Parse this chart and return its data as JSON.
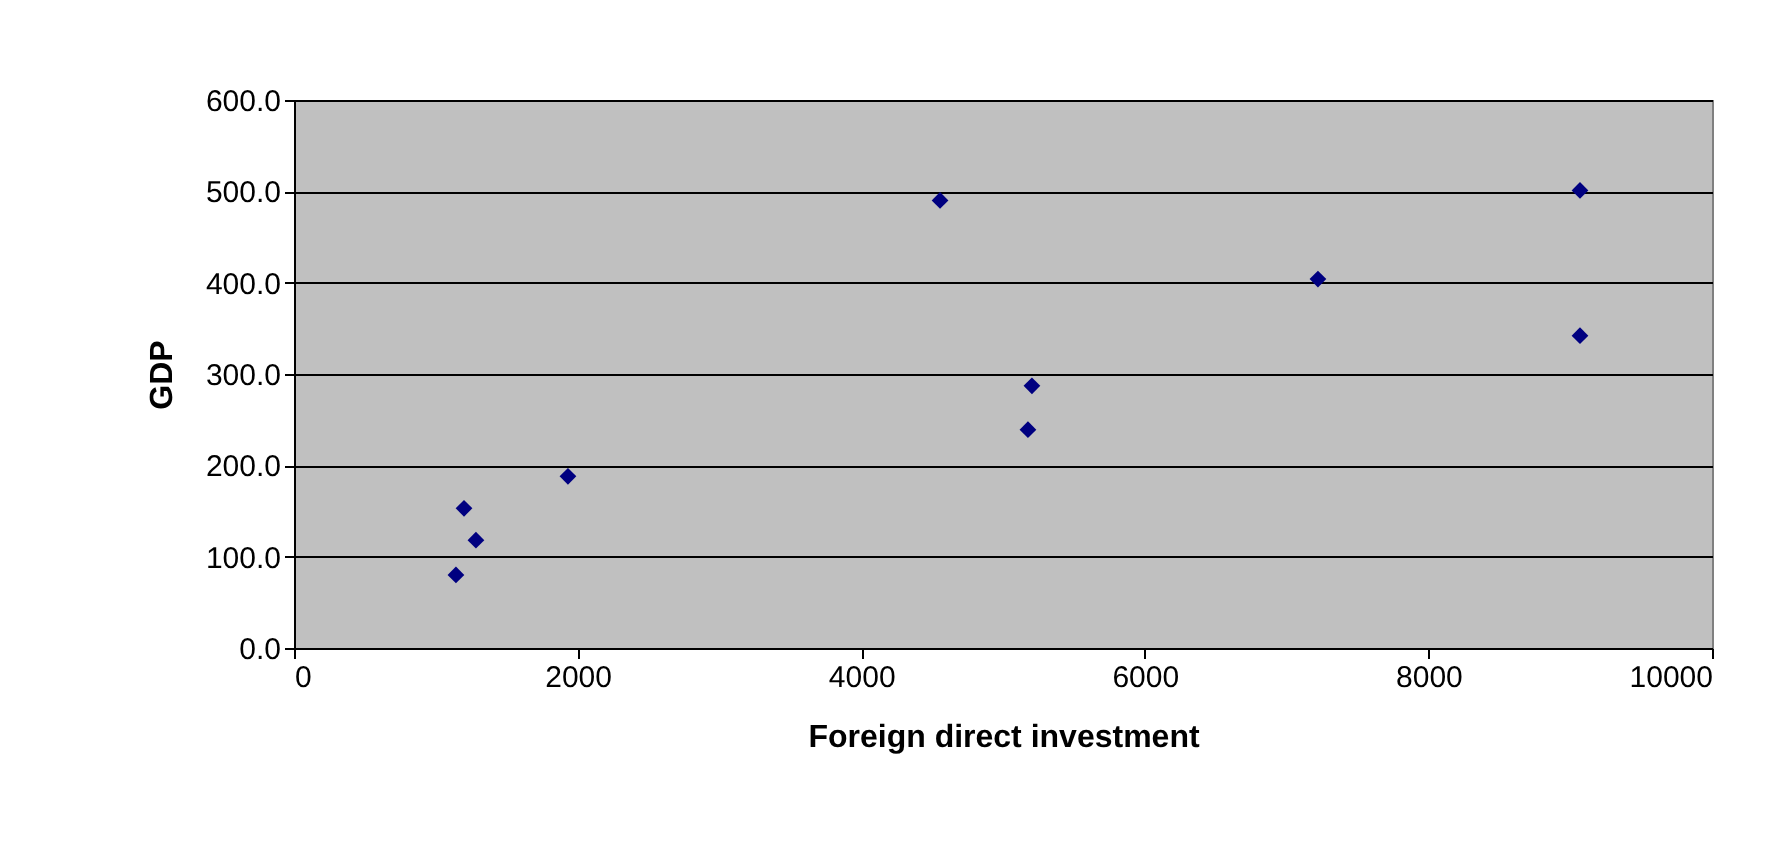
{
  "chart_data": {
    "type": "scatter",
    "xlabel": "Foreign direct investment",
    "ylabel": "GDP",
    "x": [
      1142,
      1199,
      1283,
      1932,
      4556,
      5204,
      5176,
      7221,
      9069,
      9069
    ],
    "series": [
      {
        "color": "#000080",
        "values": [
          80,
          153,
          118,
          188,
          490,
          287,
          239,
          404,
          501,
          342
        ]
      }
    ],
    "xlim": [
      0,
      10000
    ],
    "xticks": [
      0,
      2000,
      4000,
      6000,
      8000,
      10000
    ],
    "ylim": [
      0,
      600
    ],
    "yticks": [
      {
        "value": 0,
        "label": "0.0"
      },
      {
        "value": 100,
        "label": "100.0"
      },
      {
        "value": 200,
        "label": "200.0"
      },
      {
        "value": 300,
        "label": "300.0"
      },
      {
        "value": 400,
        "label": "400.0"
      },
      {
        "value": 500,
        "label": "500.0"
      },
      {
        "value": 600,
        "label": "600.0"
      }
    ],
    "grid": "y",
    "marker": "diamond"
  }
}
